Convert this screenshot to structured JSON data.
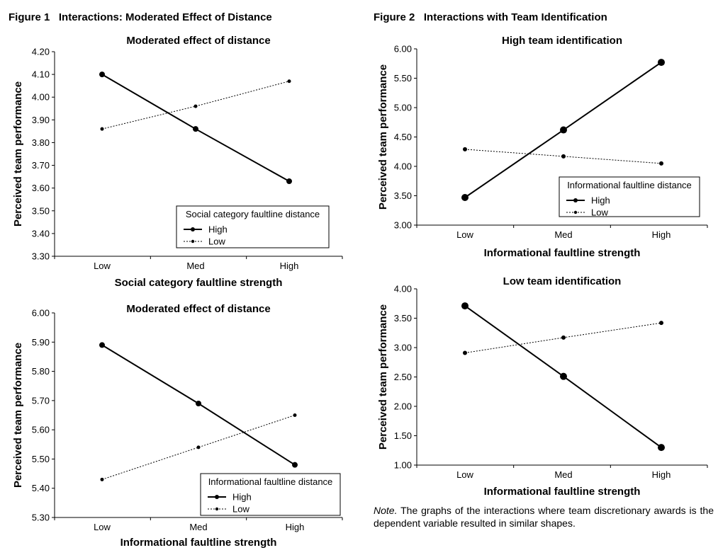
{
  "figures": {
    "fig1": {
      "number": "Figure 1",
      "title": "Interactions: Moderated Effect of Distance"
    },
    "fig2": {
      "number": "Figure 2",
      "title": "Interactions with Team Identification"
    }
  },
  "note": {
    "label": "Note.",
    "text": " The graphs of the interactions where team discretionary awards is the dependent variable resulted in similar shapes."
  },
  "chart_data": [
    {
      "type": "line",
      "title": "Moderated effect of distance",
      "xlabel": "Social category faultline strength",
      "ylabel": "Perceived team performance",
      "categories": [
        "Low",
        "Med",
        "High"
      ],
      "ylim": [
        3.3,
        4.2
      ],
      "yticks": [
        "3.30",
        "3.40",
        "3.50",
        "3.60",
        "3.70",
        "3.80",
        "3.90",
        "4.00",
        "4.10",
        "4.20"
      ],
      "legend_title": "Social category faultline distance",
      "legend_position": "bottom-right",
      "series": [
        {
          "name": "High",
          "values": [
            4.1,
            3.86,
            3.63
          ],
          "style": "solid"
        },
        {
          "name": "Low",
          "values": [
            3.86,
            3.96,
            4.07
          ],
          "style": "dotted"
        }
      ]
    },
    {
      "type": "line",
      "title": "Moderated effect of distance",
      "xlabel": "Informational faultline strength",
      "ylabel": "Perceived team performance",
      "categories": [
        "Low",
        "Med",
        "High"
      ],
      "ylim": [
        5.3,
        6.0
      ],
      "yticks": [
        "5.30",
        "5.40",
        "5.50",
        "5.60",
        "5.70",
        "5.80",
        "5.90",
        "6.00"
      ],
      "legend_title": "Informational faultline distance",
      "legend_position": "bottom-right",
      "series": [
        {
          "name": "High",
          "values": [
            5.89,
            5.69,
            5.48
          ],
          "style": "solid"
        },
        {
          "name": "Low",
          "values": [
            5.43,
            5.54,
            5.65
          ],
          "style": "dotted"
        }
      ]
    },
    {
      "type": "line",
      "title": "High team identification",
      "xlabel": "Informational faultline strength",
      "ylabel": "Perceived team performance",
      "categories": [
        "Low",
        "Med",
        "High"
      ],
      "ylim": [
        3.0,
        6.0
      ],
      "yticks": [
        "3.00",
        "3.50",
        "4.00",
        "4.50",
        "5.00",
        "5.50",
        "6.00"
      ],
      "legend_title": "Informational faultline distance",
      "legend_position": "bottom-right",
      "series": [
        {
          "name": "High",
          "values": [
            3.47,
            4.62,
            5.77
          ],
          "style": "solid"
        },
        {
          "name": "Low",
          "values": [
            4.29,
            4.17,
            4.05
          ],
          "style": "dotted"
        }
      ]
    },
    {
      "type": "line",
      "title": "Low team identification",
      "xlabel": "Informational faultline strength",
      "ylabel": "Perceived team performance",
      "categories": [
        "Low",
        "Med",
        "High"
      ],
      "ylim": [
        1.0,
        4.0
      ],
      "yticks": [
        "1.00",
        "1.50",
        "2.00",
        "2.50",
        "3.00",
        "3.50",
        "4.00"
      ],
      "legend_title": "",
      "legend_position": "none",
      "series": [
        {
          "name": "",
          "values": [
            3.71,
            2.51,
            1.3
          ],
          "style": "solid"
        },
        {
          "name": "",
          "values": [
            2.91,
            3.17,
            3.42
          ],
          "style": "dotted"
        }
      ]
    }
  ]
}
